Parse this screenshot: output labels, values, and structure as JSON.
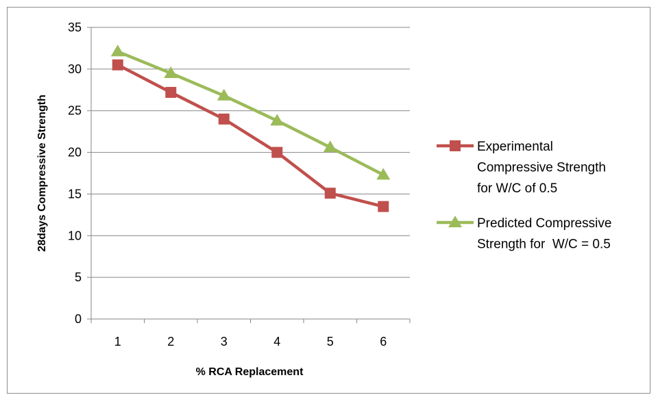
{
  "chart_data": {
    "type": "line",
    "categories": [
      "1",
      "2",
      "3",
      "4",
      "5",
      "6"
    ],
    "series": [
      {
        "name": "Experimental Compressive Strength for W/C of 0.5",
        "legend_lines": [
          "Experimental",
          "Compressive Strength",
          "for W/C of 0.5"
        ],
        "values": [
          30.5,
          27.2,
          24.0,
          20.0,
          15.1,
          13.5
        ],
        "color": "#c0504d",
        "marker": "square"
      },
      {
        "name": "Predicted Compressive Strength for  W/C = 0.5",
        "legend_lines": [
          "Predicted Compressive",
          "Strength for  W/C = 0.5"
        ],
        "values": [
          32.1,
          29.5,
          26.8,
          23.8,
          20.6,
          17.3
        ],
        "color": "#9bbb59",
        "marker": "triangle"
      }
    ],
    "title": "",
    "xlabel": "% RCA Replacement",
    "ylabel": "28days Compressive Strength",
    "ylim": [
      0,
      35
    ],
    "yticks": [
      "0",
      "5",
      "10",
      "15",
      "20",
      "25",
      "30",
      "35"
    ],
    "grid": "horizontal",
    "legend_position": "right"
  }
}
